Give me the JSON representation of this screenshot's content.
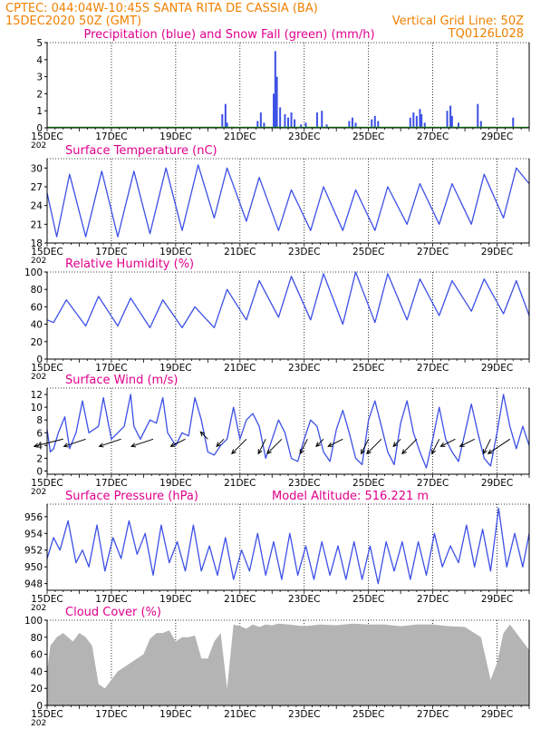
{
  "header": {
    "line1": "CPTEC:  044:04W-10:45S  SANTA RITA DE CASSIA (BA)",
    "line2_left": "15DEC2020 50Z (GMT)",
    "line2_right": "Vertical Grid Line: 50Z",
    "line3_right": "TQ0126L028"
  },
  "colors": {
    "header_text": "#f08000",
    "panel_title": "#e0008c",
    "series_line": "#3c50e6",
    "snow": "#20b020",
    "cloud_fill": "#b4b4b4"
  },
  "x_axis": {
    "range_days": [
      15,
      30
    ],
    "date_labels": [
      "15DEC",
      "17DEC",
      "19DEC",
      "21DEC",
      "23DEC",
      "25DEC",
      "27DEC",
      "29DEC"
    ],
    "year_fragment": "202"
  },
  "chart_data": [
    {
      "id": "precip",
      "type": "bar",
      "title": "Precipitation (blue) and Snow Fall (green) (mm/h)",
      "ylim": [
        0,
        5
      ],
      "yticks": [
        0,
        1,
        2,
        3,
        4,
        5
      ],
      "grid": "dotted-verticals",
      "series": [
        {
          "name": "Precipitation",
          "x": [
            20.45,
            20.55,
            20.6,
            21.55,
            21.65,
            21.75,
            22.05,
            22.1,
            22.15,
            22.25,
            22.4,
            22.5,
            22.6,
            22.7,
            22.9,
            23.05,
            23.4,
            23.55,
            23.7,
            24.4,
            24.5,
            24.6,
            25.1,
            25.2,
            25.3,
            26.3,
            26.4,
            26.5,
            26.6,
            26.65,
            26.75,
            27.45,
            27.55,
            27.6,
            27.8,
            28.4,
            28.5,
            29.5
          ],
          "values": [
            0.8,
            1.4,
            0.3,
            0.4,
            0.9,
            0.3,
            2.0,
            4.5,
            3.0,
            1.2,
            0.8,
            0.6,
            0.9,
            0.5,
            0.2,
            0.3,
            0.9,
            1.0,
            0.2,
            0.4,
            0.6,
            0.3,
            0.5,
            0.7,
            0.4,
            0.6,
            0.9,
            0.7,
            1.1,
            0.8,
            0.3,
            1.0,
            1.3,
            0.7,
            0.3,
            1.4,
            0.4,
            0.6
          ]
        },
        {
          "name": "Snow Fall",
          "x": [
            15.0,
            30.0
          ],
          "values": [
            0,
            0
          ]
        }
      ]
    },
    {
      "id": "temp",
      "type": "line",
      "title": "Surface Temperature (nC)",
      "ylim": [
        18,
        31.5
      ],
      "yticks": [
        18,
        21,
        24,
        27,
        30
      ],
      "series": [
        {
          "name": "Surface Temperature",
          "x": [
            15.0,
            15.3,
            15.7,
            16.2,
            16.7,
            17.2,
            17.7,
            18.2,
            18.7,
            19.2,
            19.7,
            20.2,
            20.6,
            21.2,
            21.6,
            22.2,
            22.6,
            23.2,
            23.6,
            24.2,
            24.6,
            25.2,
            25.6,
            26.2,
            26.6,
            27.2,
            27.6,
            28.2,
            28.6,
            29.2,
            29.6,
            30.0
          ],
          "values": [
            26.0,
            19.0,
            29.0,
            19.0,
            29.5,
            19.0,
            29.5,
            19.5,
            30.0,
            20.0,
            30.5,
            22.0,
            30.0,
            21.5,
            28.5,
            20.0,
            26.5,
            20.0,
            27.0,
            20.0,
            26.5,
            20.0,
            27.0,
            21.0,
            27.5,
            21.0,
            27.5,
            21.0,
            29.0,
            22.0,
            30.0,
            27.5
          ]
        }
      ]
    },
    {
      "id": "rh",
      "type": "line",
      "title": "Relative Humidity (%)",
      "ylim": [
        0,
        100
      ],
      "yticks": [
        0,
        20,
        40,
        60,
        80,
        100
      ],
      "series": [
        {
          "name": "Relative Humidity",
          "x": [
            15.0,
            15.2,
            15.6,
            16.2,
            16.6,
            17.2,
            17.6,
            18.2,
            18.6,
            19.2,
            19.6,
            20.2,
            20.6,
            21.2,
            21.6,
            22.2,
            22.6,
            23.2,
            23.6,
            24.2,
            24.6,
            25.2,
            25.6,
            26.2,
            26.6,
            27.2,
            27.6,
            28.2,
            28.6,
            29.2,
            29.6,
            30.0
          ],
          "values": [
            45,
            42,
            68,
            38,
            72,
            38,
            70,
            36,
            68,
            36,
            60,
            36,
            80,
            45,
            90,
            48,
            95,
            45,
            98,
            40,
            100,
            42,
            98,
            45,
            92,
            50,
            90,
            55,
            92,
            52,
            90,
            50
          ]
        }
      ]
    },
    {
      "id": "wind",
      "type": "line",
      "title": "Surface Wind (m/s)",
      "ylim": [
        -0.5,
        13
      ],
      "yticks": [
        0,
        2,
        4,
        6,
        8,
        10,
        12
      ],
      "series": [
        {
          "name": "Wind Speed",
          "x": [
            15.0,
            15.1,
            15.2,
            15.35,
            15.55,
            15.7,
            15.9,
            16.1,
            16.3,
            16.6,
            16.75,
            17.0,
            17.2,
            17.4,
            17.6,
            17.7,
            17.9,
            18.2,
            18.4,
            18.6,
            18.75,
            19.0,
            19.2,
            19.4,
            19.6,
            19.8,
            20.0,
            20.2,
            20.4,
            20.6,
            20.8,
            21.0,
            21.2,
            21.4,
            21.6,
            21.8,
            22.0,
            22.2,
            22.4,
            22.6,
            22.8,
            23.0,
            23.2,
            23.4,
            23.6,
            23.8,
            24.0,
            24.2,
            24.4,
            24.6,
            24.8,
            25.0,
            25.2,
            25.4,
            25.6,
            25.8,
            26.0,
            26.2,
            26.4,
            26.6,
            26.8,
            27.0,
            27.2,
            27.4,
            27.6,
            27.8,
            28.0,
            28.2,
            28.4,
            28.6,
            28.8,
            29.0,
            29.2,
            29.4,
            29.6,
            29.8,
            30.0
          ],
          "values": [
            6.5,
            3.0,
            3.5,
            6.0,
            8.5,
            3.5,
            6.0,
            11.0,
            6.0,
            7.0,
            11.5,
            5.0,
            6.0,
            7.0,
            12.0,
            7.0,
            5.0,
            8.0,
            7.5,
            11.5,
            6.0,
            4.0,
            6.0,
            5.5,
            11.5,
            8.0,
            3.0,
            2.5,
            4.0,
            5.0,
            10.0,
            5.0,
            8.0,
            9.0,
            7.0,
            2.0,
            5.0,
            8.0,
            6.0,
            2.0,
            1.5,
            5.0,
            8.0,
            7.0,
            3.0,
            1.5,
            6.5,
            9.5,
            6.0,
            2.0,
            1.0,
            8.0,
            11.0,
            7.0,
            3.0,
            1.0,
            7.5,
            11.0,
            6.0,
            3.0,
            0.5,
            5.0,
            10.0,
            5.0,
            3.0,
            1.5,
            6.0,
            10.5,
            6.0,
            2.0,
            0.8,
            6.0,
            12.0,
            7.0,
            3.5,
            7.0,
            4.0
          ]
        }
      ]
    },
    {
      "id": "press",
      "type": "line",
      "title": "Surface Pressure (hPa)",
      "annotation": "Model Altitude: 516.221  m",
      "ylim": [
        947.2,
        957.5
      ],
      "yticks": [
        948,
        950,
        952,
        954,
        956
      ],
      "series": [
        {
          "name": "Surface Pressure",
          "x": [
            15.0,
            15.2,
            15.4,
            15.65,
            15.9,
            16.1,
            16.3,
            16.55,
            16.8,
            17.05,
            17.3,
            17.55,
            17.8,
            18.05,
            18.3,
            18.55,
            18.8,
            19.05,
            19.3,
            19.55,
            19.8,
            20.05,
            20.3,
            20.55,
            20.8,
            21.05,
            21.3,
            21.55,
            21.8,
            22.05,
            22.3,
            22.55,
            22.8,
            23.05,
            23.3,
            23.55,
            23.8,
            24.05,
            24.3,
            24.55,
            24.8,
            25.05,
            25.3,
            25.55,
            25.8,
            26.05,
            26.3,
            26.55,
            26.8,
            27.05,
            27.3,
            27.55,
            27.8,
            28.05,
            28.3,
            28.55,
            28.8,
            29.05,
            29.3,
            29.55,
            29.8,
            30.0
          ],
          "values": [
            951.0,
            953.5,
            952.0,
            955.5,
            950.5,
            952.0,
            950.0,
            955.0,
            949.5,
            953.5,
            951.0,
            955.5,
            951.5,
            954.0,
            949.0,
            955.0,
            950.5,
            953.0,
            949.5,
            955.0,
            949.5,
            952.5,
            949.0,
            953.5,
            948.5,
            952.0,
            949.5,
            954.0,
            949.0,
            953.0,
            948.5,
            954.0,
            949.0,
            952.5,
            948.5,
            953.0,
            949.0,
            952.5,
            948.5,
            953.0,
            948.5,
            952.5,
            948.0,
            953.0,
            949.5,
            953.0,
            948.5,
            953.0,
            949.0,
            954.0,
            950.0,
            952.5,
            950.5,
            955.0,
            950.0,
            954.5,
            949.5,
            957.0,
            950.0,
            954.0,
            950.0,
            954.0
          ]
        }
      ]
    },
    {
      "id": "cloud",
      "type": "area",
      "title": "Cloud Cover (%)",
      "ylim": [
        0,
        100
      ],
      "yticks": [
        0,
        20,
        40,
        60,
        80,
        100
      ],
      "series": [
        {
          "name": "Cloud Cover",
          "x": [
            15.0,
            15.1,
            15.3,
            15.5,
            15.8,
            16.0,
            16.2,
            16.4,
            16.6,
            16.8,
            17.0,
            17.2,
            17.4,
            17.6,
            17.8,
            18.0,
            18.2,
            18.4,
            18.6,
            18.8,
            19.0,
            19.2,
            19.4,
            19.6,
            19.8,
            20.0,
            20.2,
            20.4,
            20.6,
            20.8,
            21.0,
            21.2,
            21.4,
            21.6,
            21.8,
            22.0,
            22.2,
            22.5,
            23.0,
            23.5,
            24.0,
            24.5,
            25.0,
            25.5,
            26.0,
            26.5,
            27.0,
            27.5,
            28.0,
            28.5,
            28.8,
            29.0,
            29.2,
            29.4,
            29.6,
            29.8,
            30.0
          ],
          "values": [
            40,
            70,
            80,
            85,
            75,
            85,
            80,
            70,
            25,
            20,
            30,
            40,
            45,
            50,
            55,
            60,
            78,
            85,
            85,
            88,
            75,
            80,
            80,
            82,
            55,
            55,
            75,
            85,
            20,
            95,
            93,
            90,
            95,
            92,
            95,
            94,
            96,
            95,
            93,
            95,
            94,
            96,
            95,
            95,
            93,
            95,
            95,
            93,
            92,
            80,
            30,
            50,
            85,
            95,
            85,
            75,
            65
          ]
        }
      ]
    }
  ],
  "wind_vectors": {
    "name": "Wind Vectors",
    "x": [
      15.5,
      16.2,
      17.3,
      18.3,
      19.3,
      20.0,
      20.5,
      21.2,
      21.8,
      22.3,
      23.1,
      23.6,
      24.2,
      25.0,
      25.4,
      26.0,
      26.5,
      27.2,
      27.7,
      28.3,
      28.8,
      29.4
    ],
    "u": [
      4,
      3,
      3,
      3,
      2,
      1,
      1,
      2,
      1,
      2,
      1,
      1,
      2,
      1,
      2,
      1,
      2,
      1,
      2,
      2,
      1,
      3
    ],
    "v": [
      1,
      1,
      1,
      1,
      1,
      -1,
      1,
      2,
      2,
      2,
      2,
      1,
      1,
      2,
      2,
      1,
      2,
      2,
      1,
      1,
      2,
      2
    ]
  }
}
